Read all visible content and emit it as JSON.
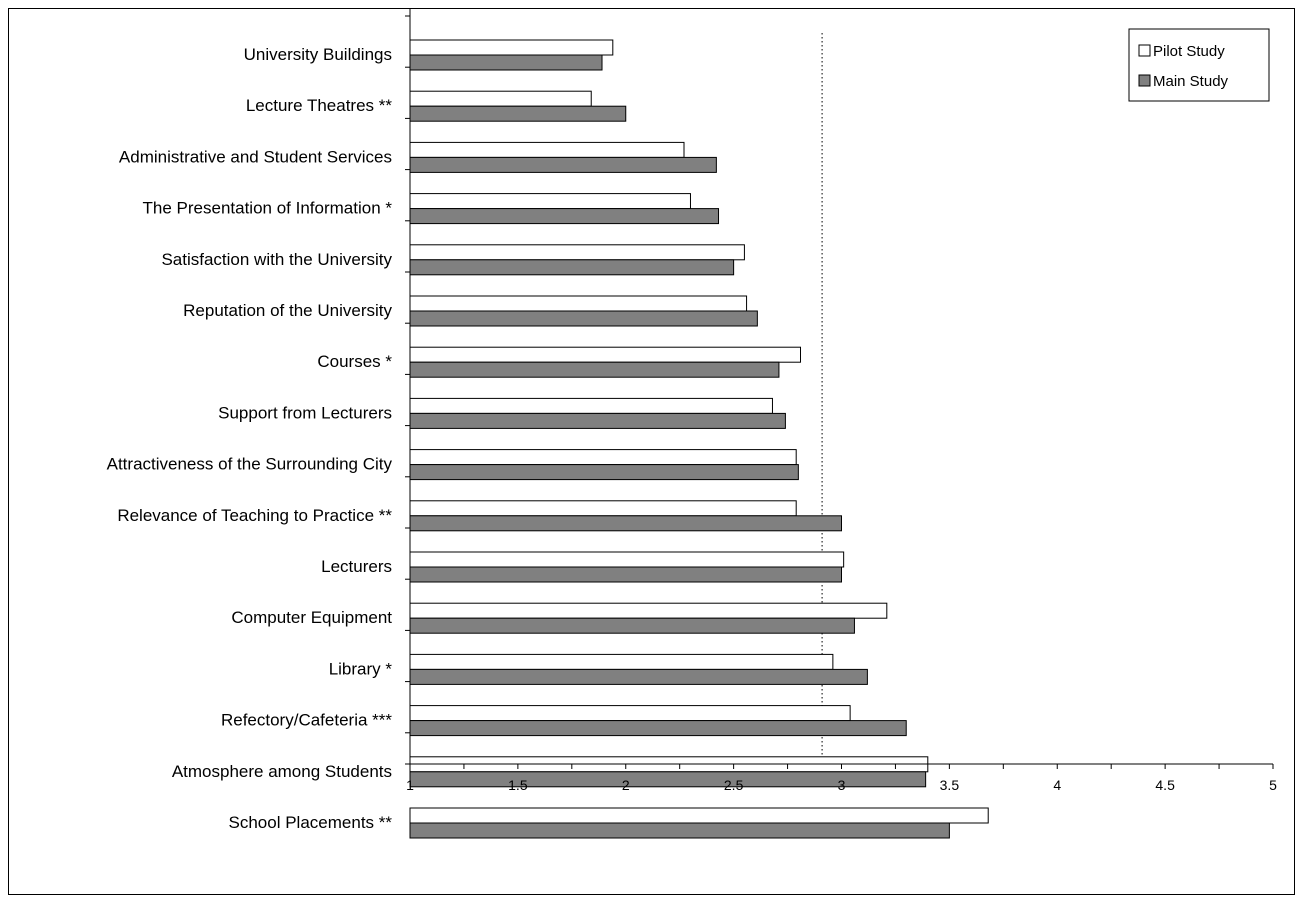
{
  "chart_data": {
    "type": "bar",
    "orientation": "horizontal",
    "categories": [
      "University Buildings",
      "Lecture Theatres  **",
      "Administrative and Student Services",
      "The Presentation of Information *",
      "Satisfaction with the University",
      "Reputation of the University",
      "Courses *",
      "Support from Lecturers",
      "Attractiveness of the Surrounding City",
      "Relevance of Teaching to Practice **",
      "Lecturers",
      "Computer Equipment",
      "Library *",
      "Refectory/Cafeteria ***",
      "Atmosphere among Students",
      "School Placements **"
    ],
    "series": [
      {
        "name": "Pilot Study",
        "color": "#ffffff",
        "values": [
          1.94,
          1.84,
          2.27,
          2.3,
          2.55,
          2.56,
          2.81,
          2.68,
          2.79,
          2.79,
          3.01,
          3.21,
          2.96,
          3.04,
          3.4,
          3.68
        ]
      },
      {
        "name": "Main Study",
        "color": "#808080",
        "values": [
          1.89,
          2.0,
          2.42,
          2.43,
          2.5,
          2.61,
          2.71,
          2.74,
          2.8,
          3.0,
          3.0,
          3.06,
          3.12,
          3.3,
          3.39,
          3.5
        ]
      }
    ],
    "xlim": [
      1,
      5
    ],
    "xticks": [
      "1",
      "1.5",
      "2",
      "2.5",
      "3",
      "3.5",
      "4",
      "4.5",
      "5"
    ],
    "reference_line": 2.91,
    "title": "",
    "xlabel": "",
    "ylabel": "",
    "legend_position": "top-right",
    "grid": false
  }
}
